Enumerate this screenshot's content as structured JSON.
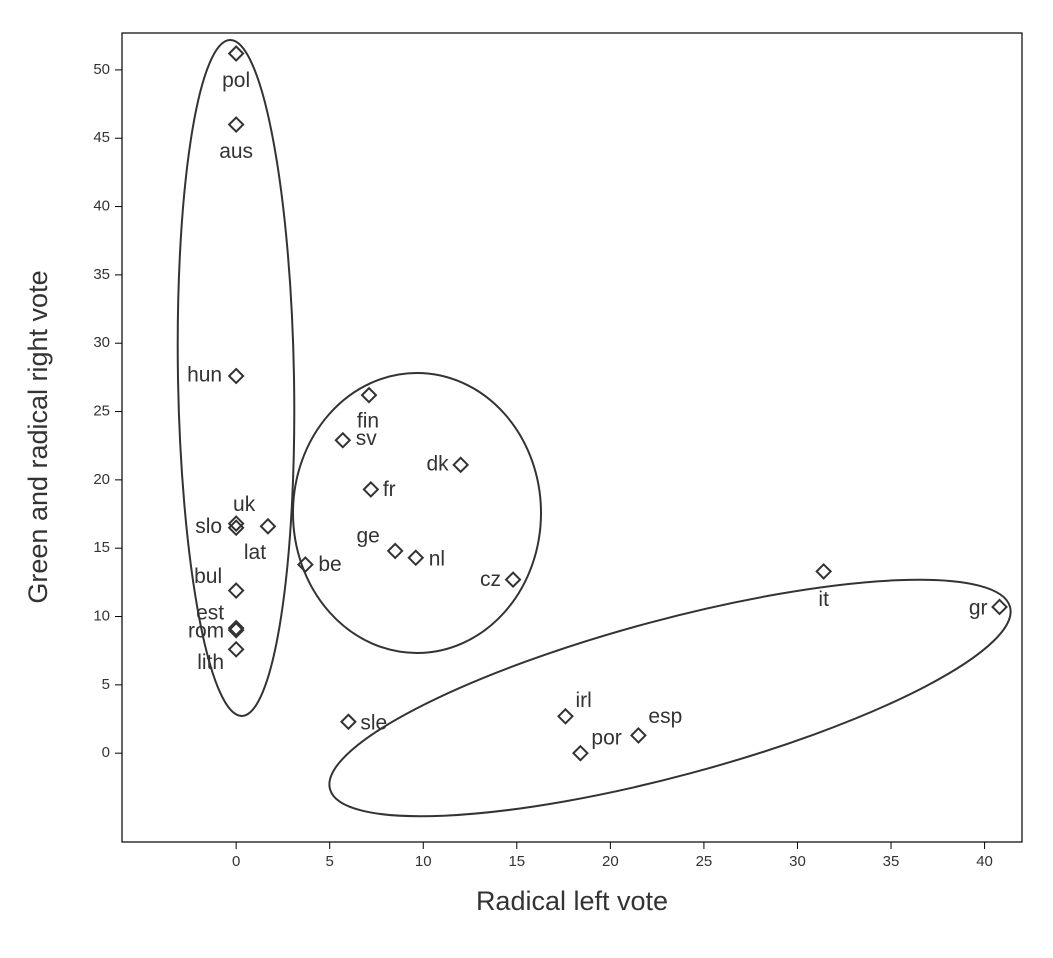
{
  "chart_data": {
    "type": "scatter",
    "x_label": "Radical left vote",
    "y_label": "Green and radical right vote",
    "point_labels": [
      "pol",
      "aus",
      "hun",
      "uk",
      "slo",
      "lat",
      "bul",
      "est",
      "rom",
      "lith",
      "fin",
      "sv",
      "dk",
      "fr",
      "ge",
      "nl",
      "be",
      "cz",
      "it",
      "gr",
      "irl",
      "esp",
      "por",
      "sle"
    ],
    "x": [
      0,
      0,
      0,
      0,
      0,
      1.7,
      0,
      0,
      0,
      0,
      7.1,
      5.7,
      12.0,
      7.2,
      8.5,
      9.6,
      3.7,
      14.8,
      31.4,
      40.8,
      17.6,
      21.5,
      18.4,
      6.0
    ],
    "values": [
      51.2,
      46.0,
      27.6,
      16.8,
      16.5,
      16.6,
      11.9,
      9.15,
      9.0,
      7.6,
      26.2,
      22.9,
      21.1,
      19.3,
      14.8,
      14.3,
      13.8,
      12.7,
      13.3,
      10.7,
      2.7,
      1.3,
      0,
      2.3
    ],
    "xlim": [
      -6.1,
      42
    ],
    "ylim": [
      -6.5,
      52.7
    ],
    "xticks": [
      0,
      5,
      10,
      15,
      20,
      25,
      30,
      35,
      40
    ],
    "yticks": [
      0,
      5,
      10,
      15,
      20,
      25,
      30,
      35,
      40,
      45,
      50
    ],
    "color": "#333333"
  }
}
